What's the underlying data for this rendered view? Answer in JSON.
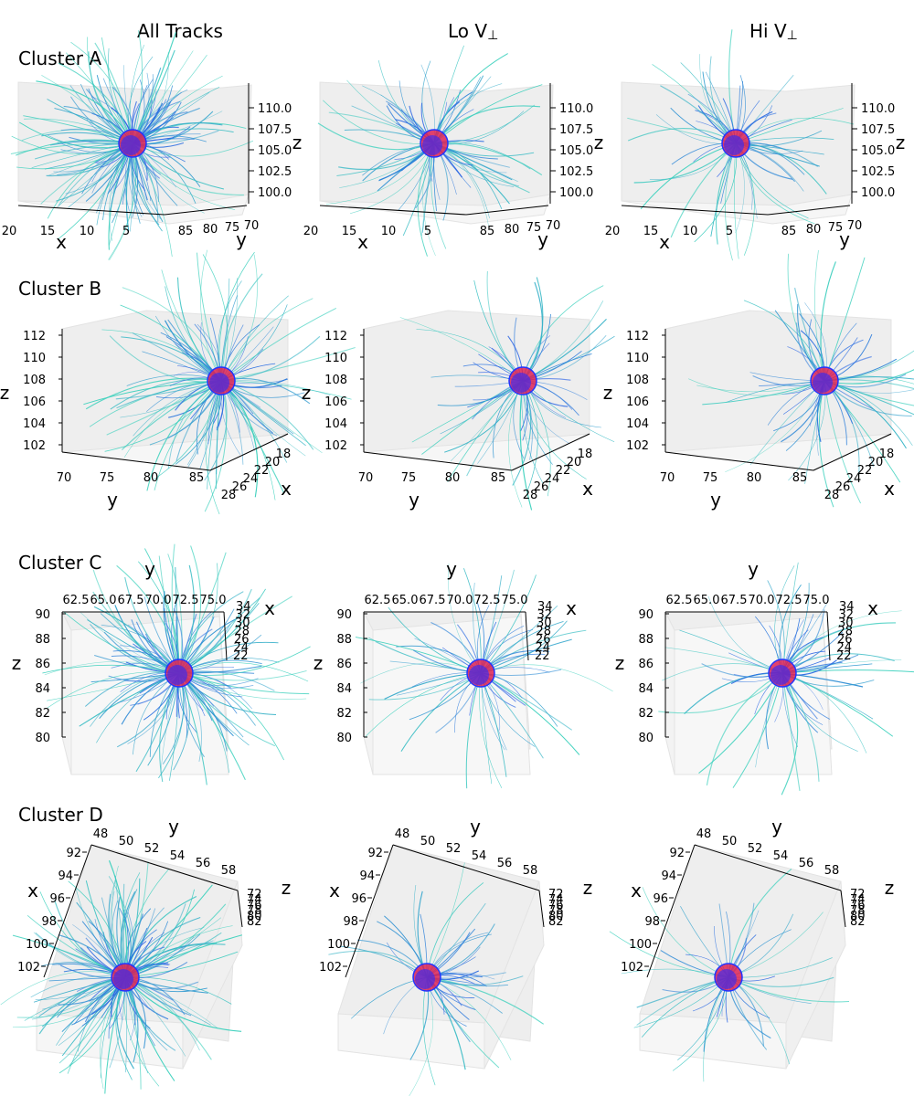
{
  "columns": [
    "All Tracks",
    "Lo V",
    "Hi V"
  ],
  "perp_symbol": "⊥",
  "rows": [
    "Cluster A",
    "Cluster B",
    "Cluster C",
    "Cluster D"
  ],
  "colors": {
    "near": "#1a1aff",
    "far": "#40f0b0",
    "sphere": "#dd2255",
    "pane": "#eeeeee"
  },
  "chart_data": [
    {
      "type": "3d-trajectory",
      "cluster": "Cluster A",
      "x": {
        "label": "x",
        "ticks": [
          "20",
          "15",
          "10",
          "5"
        ]
      },
      "y": {
        "label": "y",
        "ticks": [
          "85",
          "80",
          "75",
          "70"
        ]
      },
      "z": {
        "label": "z",
        "ticks": [
          "110.0",
          "107.5",
          "105.0",
          "102.5",
          "100.0"
        ],
        "range": [
          100,
          110
        ]
      },
      "tracks": {
        "All Tracks": 160,
        "Lo V⊥": 80,
        "Hi V⊥": 60
      }
    },
    {
      "type": "3d-trajectory",
      "cluster": "Cluster B",
      "x": {
        "label": "x",
        "ticks": [
          "28",
          "26",
          "24",
          "22",
          "20",
          "18"
        ]
      },
      "y": {
        "label": "y",
        "ticks": [
          "70",
          "75",
          "80",
          "85"
        ]
      },
      "z": {
        "label": "z",
        "ticks": [
          "112",
          "110",
          "108",
          "106",
          "104",
          "102"
        ],
        "range": [
          102,
          112
        ]
      },
      "tracks": {
        "All Tracks": 110,
        "Lo V⊥": 60,
        "Hi V⊥": 60
      }
    },
    {
      "type": "3d-trajectory",
      "cluster": "Cluster C",
      "x": {
        "label": "x",
        "ticks": [
          "34",
          "32",
          "30",
          "28",
          "26",
          "24",
          "22"
        ]
      },
      "y": {
        "label": "y",
        "ticks": [
          "62.5",
          "65.0",
          "67.5",
          "70.0",
          "72.5",
          "75.0"
        ]
      },
      "z": {
        "label": "z",
        "ticks": [
          "90",
          "88",
          "86",
          "84",
          "82",
          "80"
        ],
        "range": [
          80,
          90
        ]
      },
      "tracks": {
        "All Tracks": 130,
        "Lo V⊥": 60,
        "Hi V⊥": 60
      }
    },
    {
      "type": "3d-trajectory",
      "cluster": "Cluster D",
      "x": {
        "label": "x",
        "ticks": [
          "92",
          "94",
          "96",
          "98",
          "100",
          "102"
        ]
      },
      "y": {
        "label": "y",
        "ticks": [
          "48",
          "50",
          "52",
          "54",
          "56",
          "58"
        ]
      },
      "z": {
        "label": "z",
        "ticks": [
          "72",
          "74",
          "76",
          "78",
          "80",
          "82"
        ],
        "range": [
          72,
          82
        ]
      },
      "tracks": {
        "All Tracks": 150,
        "Lo V⊥": 45,
        "Hi V⊥": 40
      }
    }
  ]
}
